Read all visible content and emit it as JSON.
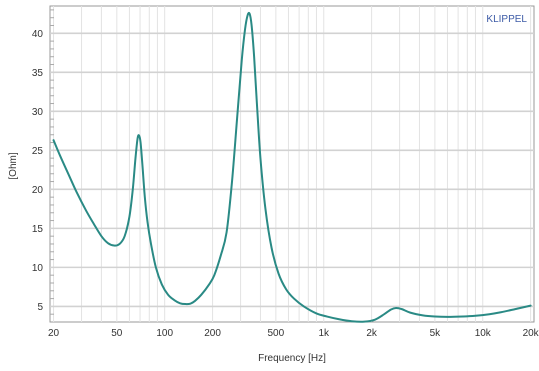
{
  "chart_data": {
    "type": "line",
    "brand": "KLIPPEL",
    "xlabel": "Frequency [Hz]",
    "ylabel": "[Ohm]",
    "x_scale": "log",
    "xlim": [
      19,
      21000
    ],
    "ylim": [
      3,
      43.5
    ],
    "grid": true,
    "x_ticks": [
      {
        "value": 20,
        "label": "20"
      },
      {
        "value": 50,
        "label": "50"
      },
      {
        "value": 100,
        "label": "100"
      },
      {
        "value": 200,
        "label": "200"
      },
      {
        "value": 500,
        "label": "500"
      },
      {
        "value": 1000,
        "label": "1k"
      },
      {
        "value": 2000,
        "label": "2k"
      },
      {
        "value": 5000,
        "label": "5k"
      },
      {
        "value": 10000,
        "label": "10k"
      },
      {
        "value": 20000,
        "label": "20k"
      }
    ],
    "y_ticks": [
      5,
      10,
      15,
      20,
      25,
      30,
      35,
      40
    ],
    "series": [
      {
        "color": "#2a8a85",
        "points": [
          [
            20,
            26.3
          ],
          [
            22,
            24.3
          ],
          [
            25,
            21.8
          ],
          [
            28,
            19.6
          ],
          [
            32,
            17.3
          ],
          [
            36,
            15.5
          ],
          [
            40,
            14.0
          ],
          [
            44,
            13.1
          ],
          [
            48,
            12.8
          ],
          [
            52,
            13.0
          ],
          [
            56,
            14.0
          ],
          [
            60,
            16.5
          ],
          [
            63,
            20.0
          ],
          [
            65.5,
            24.0
          ],
          [
            67.5,
            26.5
          ],
          [
            69,
            26.9
          ],
          [
            70.5,
            26.0
          ],
          [
            72.5,
            23.0
          ],
          [
            75,
            19.0
          ],
          [
            78,
            15.8
          ],
          [
            82,
            13.0
          ],
          [
            88,
            10.0
          ],
          [
            96,
            7.8
          ],
          [
            105,
            6.5
          ],
          [
            115,
            5.8
          ],
          [
            125,
            5.4
          ],
          [
            135,
            5.3
          ],
          [
            145,
            5.35
          ],
          [
            155,
            5.7
          ],
          [
            170,
            6.5
          ],
          [
            190,
            7.8
          ],
          [
            205,
            9.0
          ],
          [
            225,
            11.5
          ],
          [
            245,
            14.5
          ],
          [
            265,
            21.0
          ],
          [
            285,
            29.0
          ],
          [
            305,
            36.5
          ],
          [
            320,
            40.5
          ],
          [
            332,
            42.3
          ],
          [
            342,
            42.5
          ],
          [
            352,
            41.0
          ],
          [
            365,
            37.0
          ],
          [
            380,
            31.0
          ],
          [
            400,
            24.0
          ],
          [
            430,
            17.5
          ],
          [
            470,
            12.5
          ],
          [
            520,
            9.2
          ],
          [
            580,
            7.2
          ],
          [
            650,
            6.0
          ],
          [
            750,
            5.0
          ],
          [
            900,
            4.1
          ],
          [
            1050,
            3.7
          ],
          [
            1250,
            3.35
          ],
          [
            1500,
            3.1
          ],
          [
            1800,
            3.05
          ],
          [
            2100,
            3.3
          ],
          [
            2400,
            4.0
          ],
          [
            2650,
            4.6
          ],
          [
            2850,
            4.8
          ],
          [
            3100,
            4.65
          ],
          [
            3500,
            4.2
          ],
          [
            4200,
            3.85
          ],
          [
            5000,
            3.7
          ],
          [
            6000,
            3.65
          ],
          [
            7500,
            3.7
          ],
          [
            9000,
            3.8
          ],
          [
            11000,
            4.0
          ],
          [
            13000,
            4.25
          ],
          [
            16000,
            4.65
          ],
          [
            20000,
            5.1
          ]
        ]
      }
    ]
  }
}
